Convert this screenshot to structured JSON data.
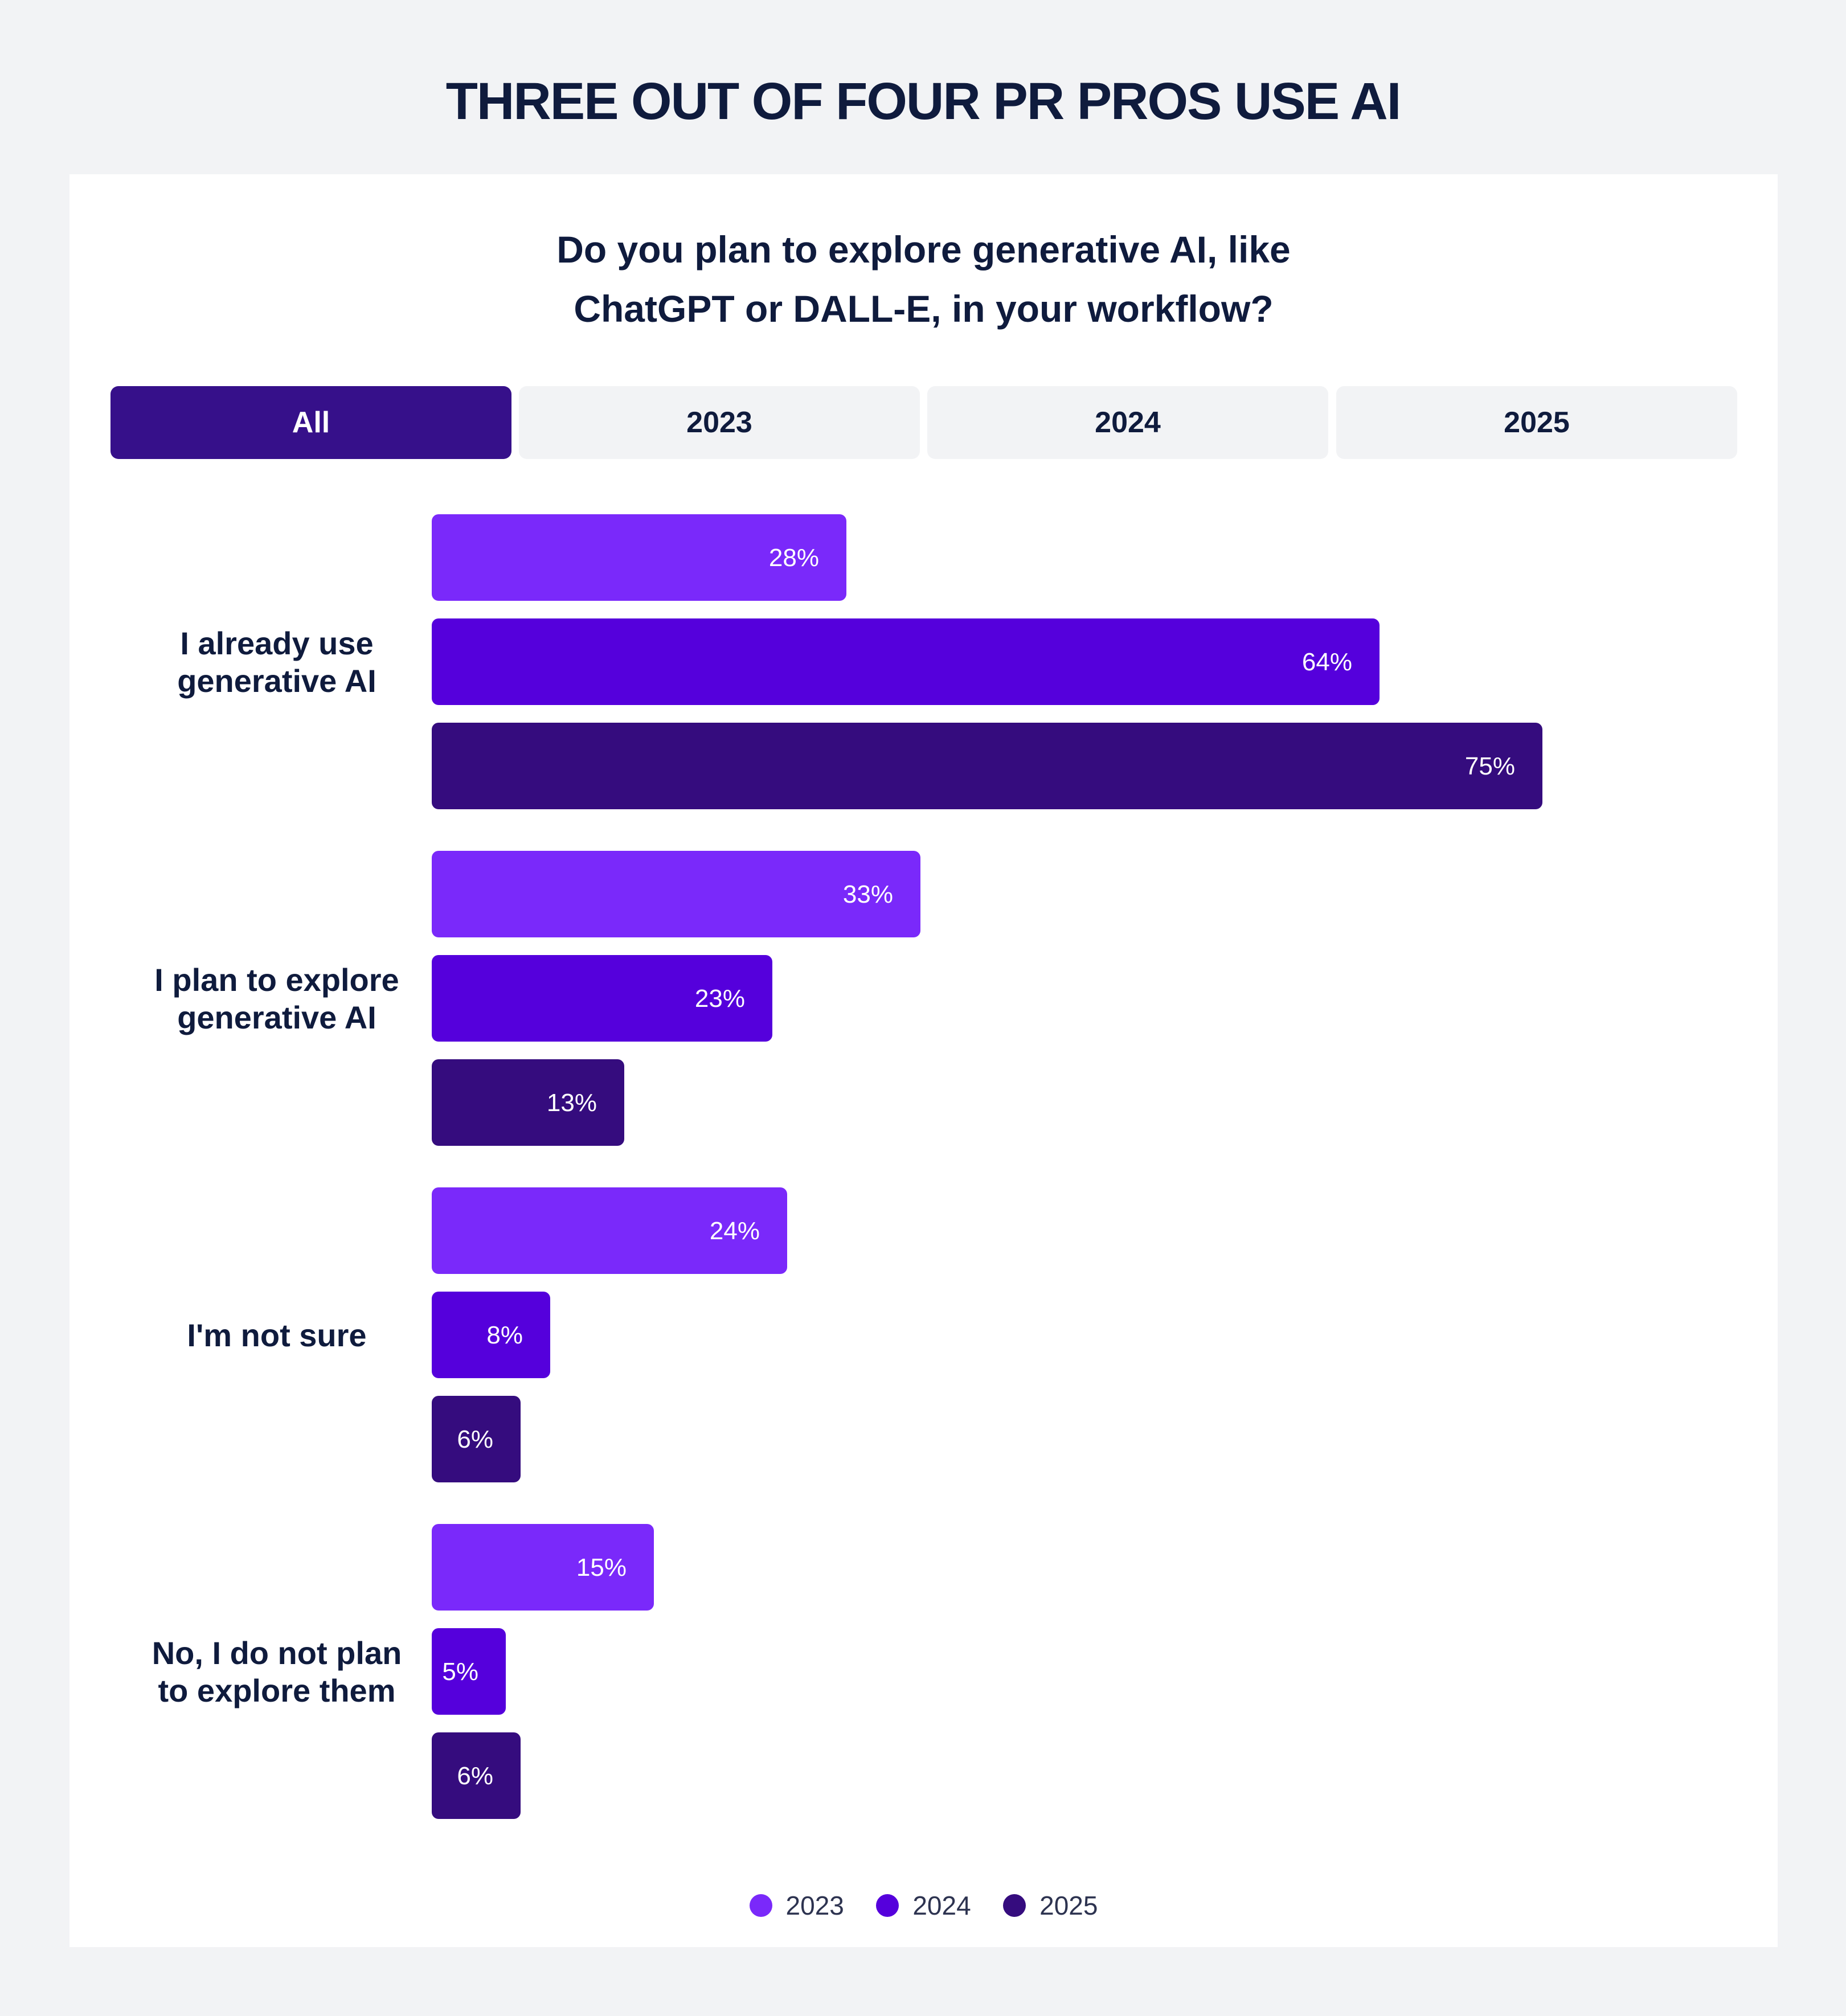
{
  "title": "THREE OUT OF FOUR PR PROS USE AI",
  "subtitle_lines": [
    "Do you plan to explore generative AI, like",
    "ChatGPT or DALL-E, in your workflow?"
  ],
  "tabs": [
    {
      "label": "All",
      "active": true
    },
    {
      "label": "2023",
      "active": false
    },
    {
      "label": "2024",
      "active": false
    },
    {
      "label": "2025",
      "active": false
    }
  ],
  "colors": {
    "2023": "#7a29fa",
    "2024": "#5500dc",
    "2025": "#350c7e",
    "tab_active": "#36108a",
    "text": "#0f1b3d"
  },
  "chart_data": {
    "type": "bar",
    "orientation": "horizontal",
    "title": "Do you plan to explore generative AI, like ChatGPT or DALL-E, in your workflow?",
    "categories": [
      [
        "I already use",
        "generative AI"
      ],
      [
        "I plan to explore",
        "generative AI"
      ],
      [
        "I'm not sure"
      ],
      [
        "No, I do not plan",
        "to explore them"
      ]
    ],
    "series": [
      {
        "name": "2023",
        "values": [
          28,
          33,
          24,
          15
        ]
      },
      {
        "name": "2024",
        "values": [
          64,
          23,
          8,
          5
        ]
      },
      {
        "name": "2025",
        "values": [
          75,
          13,
          6,
          6
        ]
      }
    ],
    "unit": "%",
    "xlim": [
      0,
      100
    ],
    "grid": false,
    "legend_position": "bottom-center"
  }
}
